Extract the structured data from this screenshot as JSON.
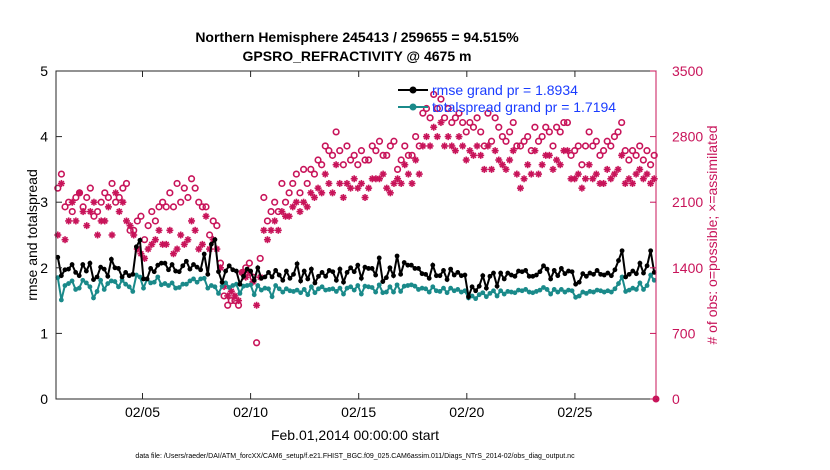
{
  "chart_data": {
    "type": "line",
    "title_line1": "Northern Hemisphere 245413 / 259655 = 94.515%",
    "title_line2": "GPSRO_REFRACTIVITY @ 4675 m",
    "xlabel": "Feb.01,2014 00:00:00 start",
    "ylabel_left": "rmse and totalspread",
    "ylabel_right": "# of obs: o=possible; ×=assimilated",
    "footnote": "data file: /Users/raeder/DAI/ATM_forcXX/CAM6_setup/f.e21.FHIST_BGC.f09_025.CAM6assim.011/Diags_NTrS_2014-02/obs_diag_output.nc",
    "x_range_days": [
      1,
      28.75
    ],
    "x_ticks": [
      {
        "day": 5,
        "label": "02/05"
      },
      {
        "day": 10,
        "label": "02/10"
      },
      {
        "day": 15,
        "label": "02/15"
      },
      {
        "day": 20,
        "label": "02/20"
      },
      {
        "day": 25,
        "label": "02/25"
      }
    ],
    "y_left_range": [
      0,
      5
    ],
    "y_left_ticks": [
      "0",
      "1",
      "2",
      "3",
      "4",
      "5"
    ],
    "y_right_range": [
      0,
      3500
    ],
    "y_right_ticks": [
      "0",
      "700",
      "1400",
      "2100",
      "2800",
      "3500"
    ],
    "legend": [
      {
        "label": "rmse grand pr = 1.8934",
        "color": "#000000",
        "marker": "circle"
      },
      {
        "label": "totalspread grand pr = 1.7194",
        "color": "#1a8a8a",
        "marker": "circle"
      }
    ],
    "series": [
      {
        "name": "rmse",
        "axis": "left",
        "color": "#000000",
        "values": [
          2.16,
          1.88,
          1.97,
          1.98,
          2.05,
          1.93,
          1.88,
          2.05,
          1.95,
          2.07,
          1.82,
          1.86,
          2.01,
          1.98,
          1.87,
          2.13,
          2.0,
          1.99,
          1.86,
          1.93,
          1.88,
          1.9,
          2.32,
          2.42,
          1.83,
          1.83,
          1.99,
          1.94,
          2.04,
          2.07,
          2.07,
          1.97,
          2.05,
          1.95,
          1.94,
          2.03,
          2.1,
          1.98,
          2.05,
          2.01,
          1.97,
          2.21,
          1.9,
          2.36,
          2.43,
          1.94,
          1.78,
          1.95,
          2.03,
          1.97,
          1.95,
          1.75,
          1.87,
          1.98,
          1.95,
          1.81,
          2.0,
          1.84,
          1.86,
          1.93,
          1.86,
          1.96,
          1.89,
          1.81,
          1.95,
          1.84,
          1.9,
          2.06,
          1.8,
          1.95,
          1.83,
          1.98,
          1.77,
          1.87,
          1.93,
          1.87,
          1.96,
          1.94,
          1.81,
          1.98,
          1.78,
          1.93,
          2.0,
          1.94,
          2.04,
          1.84,
          2.01,
          1.99,
          1.99,
          1.89,
          2.15,
          1.79,
          1.85,
          2.0,
          1.88,
          2.18,
          1.9,
          2.08,
          2.04,
          2.04,
          1.99,
          1.99,
          1.91,
          1.9,
          1.84,
          2.04,
          1.88,
          1.88,
          1.96,
          1.82,
          1.98,
          1.89,
          1.93,
          1.88,
          1.89,
          1.56,
          1.71,
          1.65,
          1.72,
          1.88,
          1.69,
          1.87,
          1.92,
          1.72,
          1.92,
          1.83,
          1.92,
          1.89,
          1.87,
          1.95,
          1.94,
          1.96,
          1.87,
          1.87,
          1.89,
          1.94,
          2.03,
          1.98,
          1.83,
          1.96,
          1.88,
          1.99,
          1.91,
          1.95,
          1.94,
          1.75,
          1.78,
          1.91,
          1.87,
          1.92,
          1.9,
          1.96,
          1.9,
          1.89,
          1.92,
          1.88,
          1.97,
          2.11,
          2.26,
          1.86,
          1.9,
          1.95,
          1.91,
          2.07,
          1.92,
          2.03,
          2.26,
          1.93
        ]
      },
      {
        "name": "totalspread",
        "axis": "left",
        "color": "#1a8a8a",
        "values": [
          1.85,
          1.51,
          1.73,
          1.76,
          1.8,
          1.67,
          1.69,
          1.81,
          1.77,
          1.71,
          1.54,
          1.64,
          1.81,
          1.67,
          1.76,
          1.8,
          1.79,
          1.71,
          1.81,
          1.75,
          1.71,
          1.64,
          1.89,
          1.86,
          1.69,
          1.83,
          1.77,
          1.78,
          1.86,
          1.74,
          1.76,
          1.73,
          1.77,
          1.69,
          1.7,
          1.75,
          1.75,
          1.8,
          1.83,
          1.78,
          1.83,
          1.84,
          1.69,
          1.73,
          1.71,
          1.61,
          1.72,
          1.77,
          1.7,
          1.73,
          1.75,
          1.61,
          1.72,
          1.73,
          1.74,
          1.59,
          1.73,
          1.66,
          1.69,
          1.68,
          1.56,
          1.73,
          1.68,
          1.63,
          1.68,
          1.65,
          1.64,
          1.66,
          1.62,
          1.67,
          1.59,
          1.71,
          1.62,
          1.68,
          1.71,
          1.66,
          1.67,
          1.68,
          1.64,
          1.69,
          1.6,
          1.69,
          1.71,
          1.66,
          1.73,
          1.6,
          1.72,
          1.71,
          1.7,
          1.63,
          1.74,
          1.62,
          1.63,
          1.71,
          1.63,
          1.74,
          1.64,
          1.72,
          1.73,
          1.74,
          1.72,
          1.67,
          1.69,
          1.68,
          1.63,
          1.71,
          1.65,
          1.64,
          1.69,
          1.62,
          1.69,
          1.65,
          1.67,
          1.63,
          1.65,
          1.54,
          1.57,
          1.53,
          1.59,
          1.62,
          1.56,
          1.61,
          1.65,
          1.57,
          1.65,
          1.6,
          1.64,
          1.63,
          1.62,
          1.66,
          1.65,
          1.67,
          1.63,
          1.62,
          1.64,
          1.66,
          1.7,
          1.67,
          1.6,
          1.67,
          1.63,
          1.67,
          1.63,
          1.66,
          1.65,
          1.55,
          1.57,
          1.63,
          1.61,
          1.64,
          1.63,
          1.66,
          1.65,
          1.63,
          1.65,
          1.63,
          1.68,
          1.76,
          1.86,
          1.64,
          1.66,
          1.69,
          1.67,
          1.77,
          1.67,
          1.73,
          1.89,
          1.81
        ]
      },
      {
        "name": "obs possible",
        "axis": "right",
        "color": "#c8145a",
        "marker": "open-circle",
        "values": [
          2250,
          2400,
          2050,
          2100,
          2000,
          2150,
          2200,
          2050,
          2150,
          2250,
          1950,
          2000,
          2100,
          2200,
          2150,
          2300,
          2100,
          2150,
          2250,
          2300,
          1800,
          1800,
          1900,
          1950,
          1700,
          1850,
          2000,
          1900,
          2050,
          2100,
          2050,
          2200,
          2050,
          2300,
          2100,
          2250,
          2150,
          2350,
          2250,
          2100,
          2050,
          2050,
          1750,
          1900,
          1850,
          1450,
          1100,
          1000,
          1050,
          1050,
          1000,
          1350,
          1400,
          1450,
          1300,
          600,
          1500,
          2150,
          1900,
          2000,
          2100,
          2000,
          2300,
          2100,
          2200,
          2300,
          2400,
          2200,
          2450,
          2300,
          2450,
          2400,
          2550,
          2500,
          2700,
          2650,
          2600,
          2850,
          2650,
          2500,
          2700,
          2550,
          2600,
          2500,
          2650,
          2550,
          2550,
          2700,
          2650,
          2750,
          2600,
          2600,
          2700,
          2750,
          2450,
          2550,
          2700,
          2600,
          2600,
          2800,
          2700,
          3050,
          3100,
          3000,
          3250,
          3100,
          3200,
          3000,
          3100,
          2950,
          3000,
          3050,
          2950,
          2850,
          2950,
          2900,
          3000,
          2850,
          2700,
          3050,
          2750,
          3000,
          2900,
          2800,
          2750,
          2850,
          2950,
          2700,
          2700,
          2750,
          2800,
          2650,
          2900,
          2750,
          2800,
          2900,
          2850,
          2700,
          2900,
          2850,
          2950,
          2950,
          2600,
          2650,
          2700,
          2500,
          2700,
          2850,
          2700,
          2750,
          2600,
          2650,
          2750,
          2700,
          2800,
          2850,
          2950,
          2650,
          2550,
          2650,
          2600,
          2700,
          2550,
          2650,
          2500,
          2600
        ]
      },
      {
        "name": "obs assimilated",
        "axis": "right",
        "color": "#c8145a",
        "marker": "asterisk",
        "values": [
          1750,
          2300,
          1700,
          1900,
          2100,
          1900,
          2200,
          2000,
          1850,
          2000,
          2100,
          1750,
          1900,
          1900,
          2050,
          1750,
          2200,
          2000,
          2100,
          1900,
          1850,
          1750,
          1600,
          1550,
          1500,
          1600,
          1650,
          1700,
          1800,
          1650,
          1650,
          1800,
          1550,
          1600,
          1750,
          1650,
          1700,
          1900,
          1800,
          1600,
          1650,
          1950,
          1600,
          1700,
          1600,
          1400,
          1200,
          1100,
          1150,
          1100,
          1050,
          1350,
          1300,
          1350,
          1250,
          1000,
          1300,
          1800,
          1700,
          1800,
          1900,
          1800,
          2000,
          1950,
          1950,
          2050,
          2100,
          2000,
          2100,
          2050,
          2200,
          2150,
          2250,
          2200,
          2400,
          2300,
          2200,
          2500,
          2300,
          2150,
          2300,
          2250,
          2350,
          2250,
          2300,
          2150,
          2250,
          2350,
          2350,
          2350,
          2400,
          2250,
          2200,
          2300,
          2350,
          2300,
          2500,
          2400,
          2300,
          2550,
          2400,
          2700,
          2800,
          2700,
          2900,
          2800,
          2950,
          2700,
          2800,
          2700,
          2650,
          2800,
          2700,
          2550,
          2650,
          2600,
          2700,
          2600,
          2450,
          2700,
          2450,
          2650,
          2550,
          2500,
          2450,
          2550,
          2650,
          2400,
          2250,
          2350,
          2500,
          2400,
          2650,
          2400,
          2500,
          2600,
          2600,
          2450,
          2550,
          2500,
          2650,
          2650,
          2350,
          2350,
          2400,
          2250,
          2350,
          2500,
          2350,
          2400,
          2300,
          2300,
          2450,
          2350,
          2400,
          2450,
          2600,
          2300,
          2350,
          2300,
          2400,
          2450,
          2350,
          2400,
          2300,
          2350
        ]
      }
    ]
  }
}
